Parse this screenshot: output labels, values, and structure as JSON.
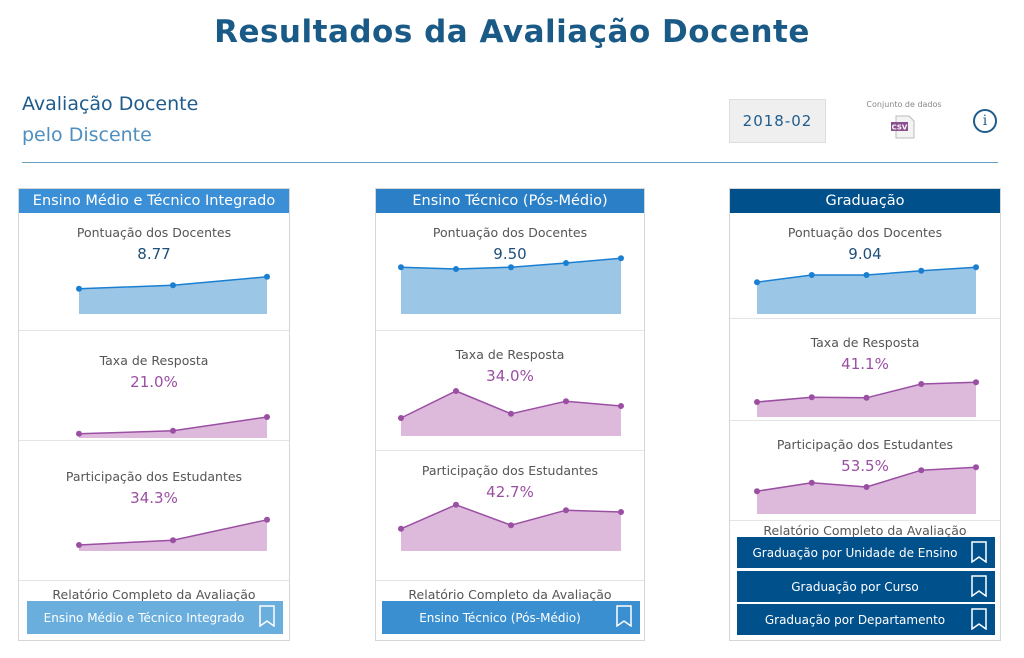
{
  "header": {
    "title": "Resultados da Avaliação Docente",
    "subtitle_line1": "Avaliação Docente",
    "subtitle_line2": "pelo Discente",
    "period": "2018-02",
    "dataset_label": "Conjunto de dados",
    "csv_icon": "csv-file-icon",
    "csv_text": "CSV",
    "info_icon": "info-icon",
    "info_glyph": "i"
  },
  "colors": {
    "score_line": "#1a7fd1",
    "score_fill": "#9cc6e6",
    "rate_line": "#9b4fa3",
    "rate_fill": "#ddb9dc",
    "panel1_head": "#3a8fd6",
    "panel2_head": "#2a7fc6",
    "panel3_head": "#00508c"
  },
  "panels": [
    {
      "title": "Ensino Médio e Técnico Integrado",
      "metrics": [
        {
          "label": "Pontuação dos Docentes",
          "value": "8.77",
          "trend_level": [
            0.42,
            0.48,
            0.62
          ]
        },
        {
          "label": "Taxa de Resposta",
          "value": "21.0%",
          "trend_level": [
            0.07,
            0.12,
            0.35
          ]
        },
        {
          "label": "Participação dos Estudantes",
          "value": "34.3%",
          "trend_level": [
            0.1,
            0.18,
            0.52
          ]
        }
      ],
      "report_label": "Relatório Completo da Avaliação",
      "buttons": [
        "Ensino Médio e Técnico Integrado"
      ]
    },
    {
      "title": "Ensino Técnico (Pós-Médio)",
      "metrics": [
        {
          "label": "Pontuação dos Docentes",
          "value": "9.50",
          "trend_level": [
            0.78,
            0.75,
            0.78,
            0.85,
            0.93
          ]
        },
        {
          "label": "Taxa de Resposta",
          "value": "34.0%",
          "trend_level": [
            0.3,
            0.75,
            0.37,
            0.58,
            0.5
          ]
        },
        {
          "label": "Participação dos Estudantes",
          "value": "42.7%",
          "trend_level": [
            0.37,
            0.77,
            0.43,
            0.68,
            0.65
          ]
        }
      ],
      "report_label": "Relatório Completo da Avaliação",
      "buttons": [
        "Ensino Técnico (Pós-Médio)"
      ]
    },
    {
      "title": "Graduação",
      "metrics": [
        {
          "label": "Pontuação dos Docentes",
          "value": "9.04",
          "trend_level": [
            0.53,
            0.65,
            0.65,
            0.72,
            0.78
          ]
        },
        {
          "label": "Taxa de Resposta",
          "value": "41.1%",
          "trend_level": [
            0.25,
            0.33,
            0.32,
            0.55,
            0.58
          ]
        },
        {
          "label": "Participação dos Estudantes",
          "value": "53.5%",
          "trend_level": [
            0.38,
            0.52,
            0.45,
            0.73,
            0.78
          ]
        }
      ],
      "report_label": "Relatório Completo da Avaliação",
      "buttons": [
        "Graduação por Unidade de Ensino",
        "Graduação por Curso",
        "Graduação por Departamento"
      ]
    }
  ]
}
